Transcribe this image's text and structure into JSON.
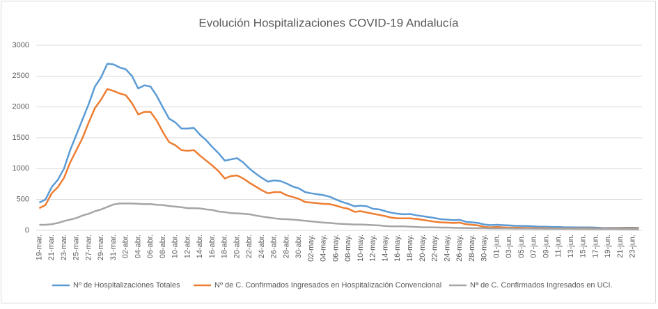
{
  "chart_data": {
    "type": "line",
    "title": "Evolución Hospitalizaciones COVID-19 Andalucía",
    "categories": [
      "19-mar.",
      null,
      "21-mar.",
      null,
      "23-mar.",
      null,
      "25-mar.",
      null,
      "27-mar.",
      null,
      "29-mar.",
      null,
      "31-mar.",
      null,
      "02-abr.",
      null,
      "04-abr.",
      null,
      "06-abr.",
      null,
      "08-abr.",
      null,
      "10-abr.",
      null,
      "12-abr.",
      null,
      "14-abr.",
      null,
      "16-abr.",
      null,
      "18-abr.",
      null,
      "20-abr.",
      null,
      "22-abr.",
      null,
      "24-abr.",
      null,
      "26-abr.",
      null,
      "28-abr.",
      null,
      "30-abr.",
      null,
      "02-may.",
      null,
      "04-may.",
      null,
      "06-may.",
      null,
      "08-may.",
      null,
      "10-may.",
      null,
      "12-may.",
      null,
      "14-may.",
      null,
      "16-may.",
      null,
      "18-may.",
      null,
      "20-may.",
      null,
      "22-may.",
      null,
      "24-may.",
      null,
      "26-may.",
      null,
      "28-may.",
      null,
      "30-may.",
      null,
      "01-jun.",
      null,
      "03-jun.",
      null,
      "05-jun.",
      null,
      "07-jun.",
      null,
      "09-jun.",
      null,
      "11-jun.",
      null,
      "13-jun.",
      null,
      "15-jun.",
      null,
      "17-jun.",
      null,
      "19-jun.",
      null,
      "21-jun.",
      null,
      "23-jun.",
      null
    ],
    "series": [
      {
        "name": "Nº de Hospitalizaciones Totales",
        "color": "#5b9bd5",
        "values": [
          450,
          500,
          700,
          820,
          1000,
          1300,
          1550,
          1800,
          2050,
          2330,
          2480,
          2700,
          2690,
          2640,
          2610,
          2500,
          2300,
          2350,
          2330,
          2180,
          1990,
          1810,
          1750,
          1650,
          1650,
          1660,
          1550,
          1460,
          1350,
          1250,
          1130,
          1150,
          1170,
          1100,
          1000,
          920,
          850,
          790,
          810,
          800,
          760,
          710,
          680,
          620,
          600,
          585,
          570,
          545,
          500,
          460,
          430,
          390,
          400,
          390,
          350,
          340,
          310,
          285,
          270,
          260,
          265,
          245,
          230,
          215,
          200,
          180,
          175,
          165,
          170,
          140,
          130,
          120,
          95,
          85,
          90,
          85,
          80,
          75,
          72,
          70,
          65,
          60,
          60,
          55,
          55,
          50,
          50,
          48,
          48,
          48,
          45,
          40,
          38,
          40,
          40,
          42,
          42,
          40
        ]
      },
      {
        "name": "Nº de C. Confirmados Ingresados en Hospitalización Convencional",
        "color": "#ed7d31",
        "values": [
          360,
          410,
          600,
          700,
          850,
          1100,
          1300,
          1500,
          1750,
          1980,
          2120,
          2290,
          2260,
          2220,
          2190,
          2060,
          1880,
          1920,
          1920,
          1780,
          1590,
          1430,
          1380,
          1300,
          1290,
          1300,
          1210,
          1130,
          1050,
          960,
          840,
          880,
          890,
          840,
          770,
          710,
          650,
          600,
          620,
          620,
          570,
          540,
          510,
          460,
          450,
          440,
          430,
          425,
          400,
          370,
          350,
          300,
          310,
          290,
          270,
          250,
          230,
          205,
          195,
          195,
          195,
          185,
          170,
          155,
          140,
          130,
          125,
          120,
          125,
          100,
          90,
          80,
          55,
          50,
          55,
          50,
          45,
          45,
          42,
          40,
          38,
          35,
          35,
          32,
          32,
          30,
          30,
          30,
          30,
          30,
          28,
          28,
          28,
          30,
          30,
          32,
          32,
          30
        ]
      },
      {
        "name": "Nª de C. Confirmados Ingresados en UCI.",
        "color": "#a5a5a5",
        "values": [
          90,
          90,
          100,
          120,
          150,
          175,
          200,
          240,
          270,
          310,
          340,
          380,
          420,
          435,
          435,
          435,
          430,
          425,
          425,
          415,
          410,
          395,
          385,
          375,
          360,
          360,
          355,
          340,
          330,
          305,
          295,
          280,
          275,
          270,
          260,
          240,
          225,
          210,
          195,
          185,
          180,
          175,
          165,
          155,
          145,
          135,
          125,
          120,
          110,
          105,
          100,
          95,
          95,
          90,
          85,
          80,
          70,
          65,
          65,
          65,
          60,
          55,
          50,
          50,
          48,
          45,
          45,
          42,
          40,
          38,
          35,
          35,
          35,
          30,
          30,
          30,
          30,
          28,
          28,
          28,
          27,
          27,
          26,
          26,
          25,
          25,
          25,
          24,
          24,
          23,
          23,
          22,
          22,
          22,
          21,
          21,
          20,
          20
        ]
      }
    ],
    "ylim": [
      0,
      3000
    ],
    "yticks": [
      0,
      500,
      1000,
      1500,
      2000,
      2500,
      3000
    ],
    "grid": true,
    "legend": "bottom"
  }
}
